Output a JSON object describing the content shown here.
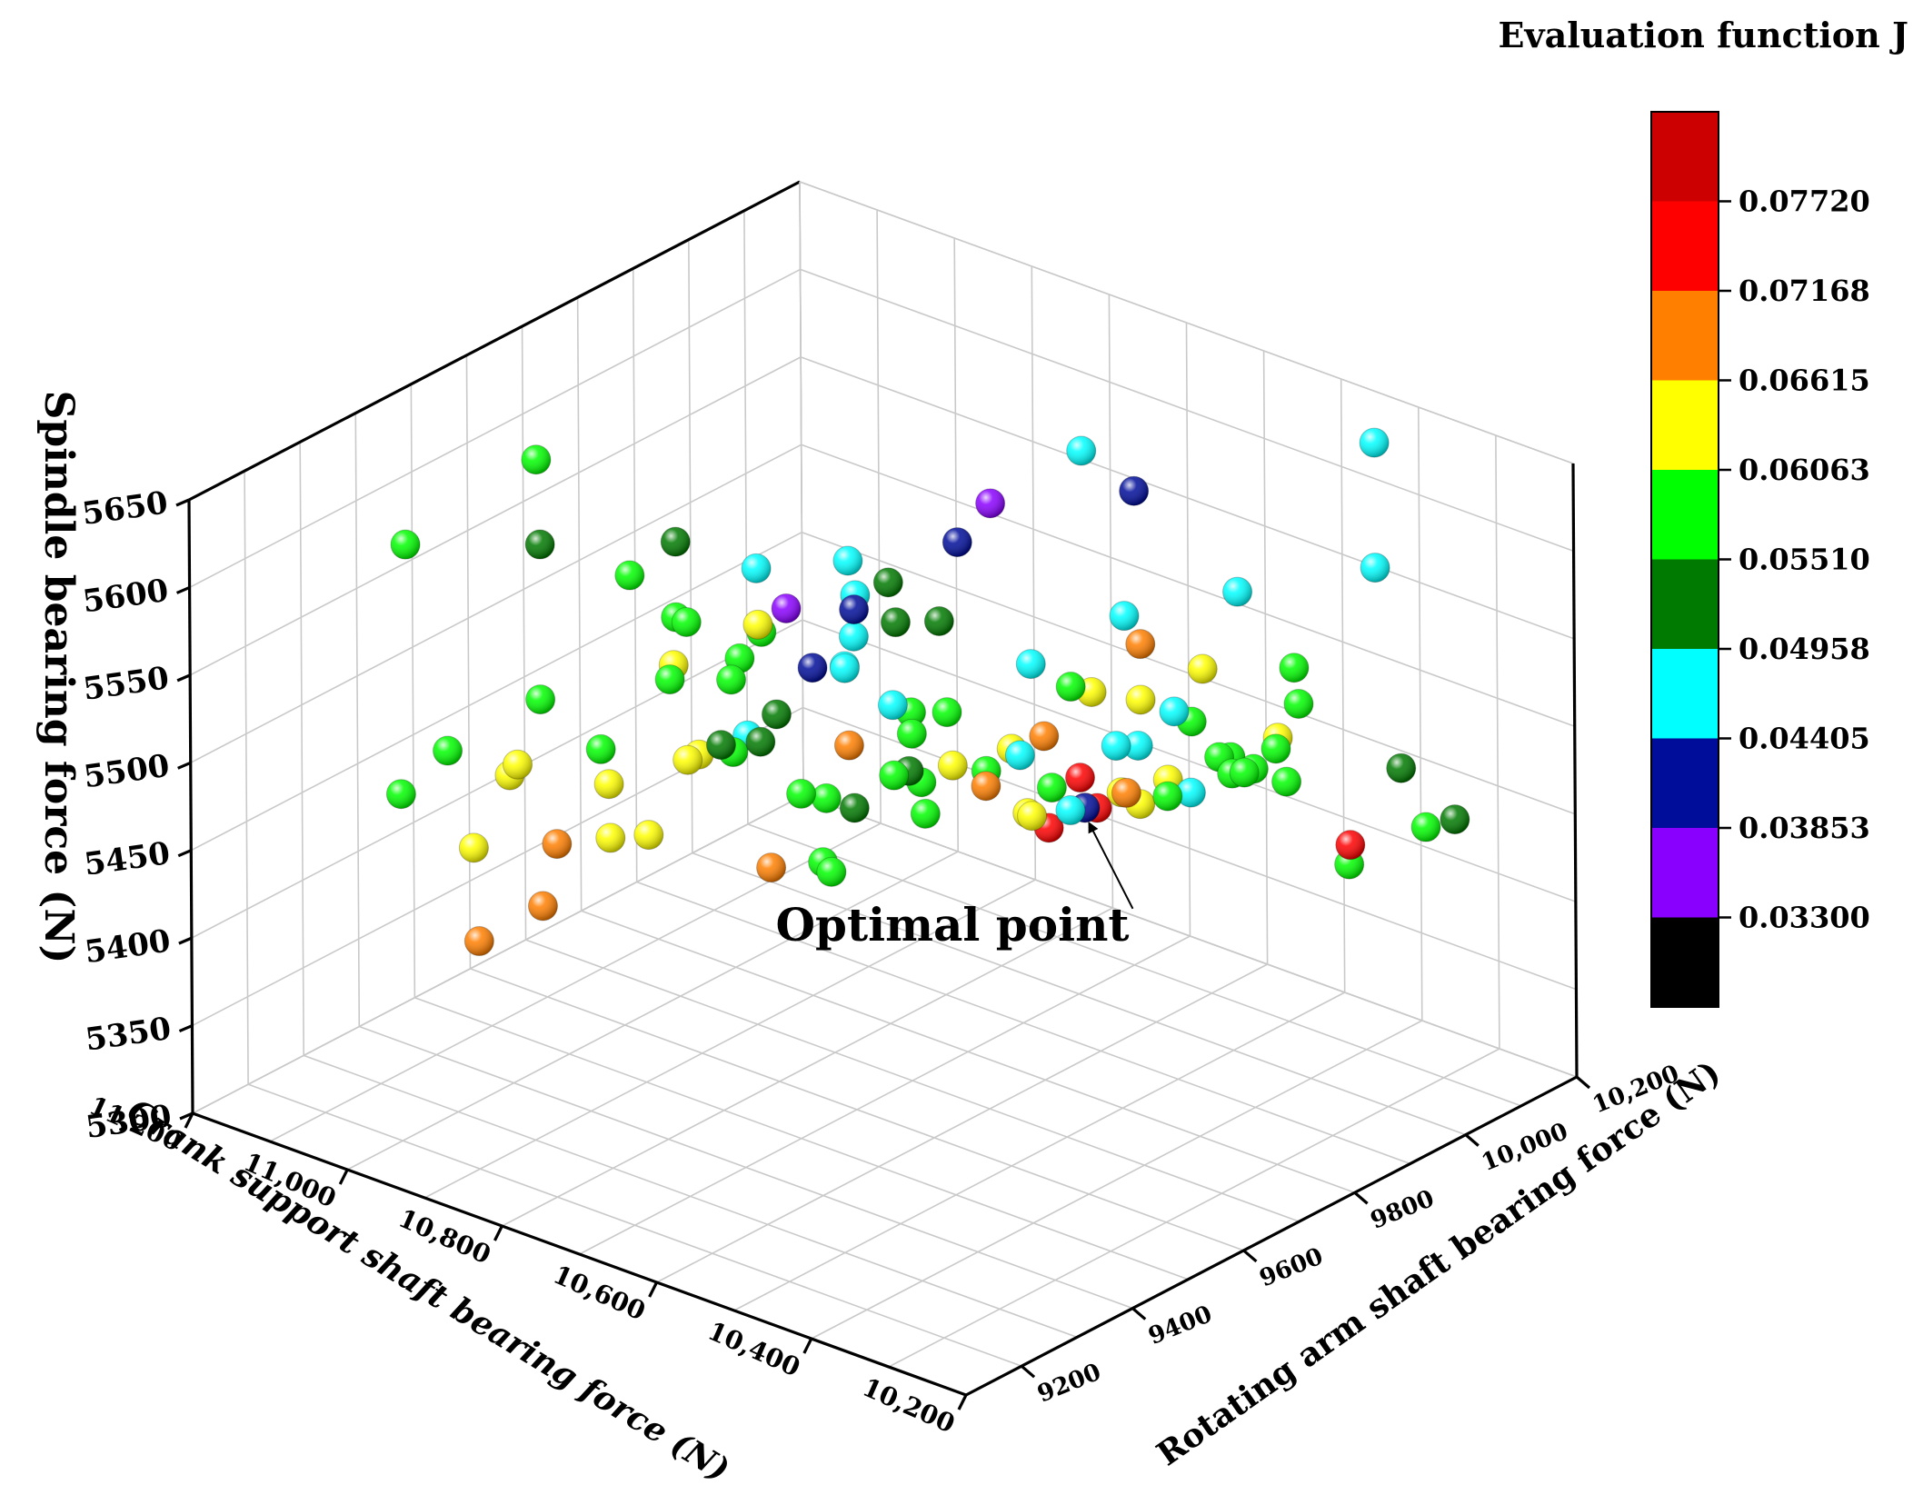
{
  "chart_data": {
    "type": "scatter",
    "annotation": "Optimal point",
    "colorbar": {
      "title": "Evaluation function J",
      "levels": [
        0.033,
        0.03853,
        0.04405,
        0.04958,
        0.0551,
        0.06063,
        0.06615,
        0.07168,
        0.0772
      ],
      "tick_labels": [
        "0.03300",
        "0.03853",
        "0.04405",
        "0.04958",
        "0.05510",
        "0.06063",
        "0.06615",
        "0.07168",
        "0.07720"
      ],
      "colors": [
        "#000000",
        "#8a00ff",
        "#000d9a",
        "#00ffff",
        "#007a00",
        "#00ff00",
        "#ffff00",
        "#ff7f00",
        "#ff0000",
        "#cc0000"
      ]
    },
    "axes": {
      "x": {
        "label": "Crank support shaft bearing force (N)",
        "range": [
          10200,
          11200
        ],
        "ticks": [
          11200,
          11000,
          10800,
          10600,
          10400,
          10200
        ],
        "tick_labels": [
          "11,200",
          "11,000",
          "10,800",
          "10,600",
          "10,400",
          "10,200"
        ]
      },
      "y": {
        "label": "Rotating arm shaft bearing force (N)",
        "range": [
          9100,
          10200
        ],
        "ticks": [
          9200,
          9400,
          9600,
          9800,
          10000,
          10200
        ],
        "tick_labels": [
          "9200",
          "9400",
          "9600",
          "9800",
          "10,000",
          "10,200"
        ]
      },
      "z": {
        "label": "Spindle bearing force (N)",
        "range": [
          5300,
          5650
        ],
        "ticks": [
          5300,
          5350,
          5400,
          5450,
          5500,
          5550,
          5600,
          5650
        ],
        "tick_labels": [
          "5300",
          "5350",
          "5400",
          "5450",
          "5500",
          "5550",
          "5600",
          "5650"
        ]
      }
    },
    "points": [
      {
        "x": 11060,
        "y": 9294,
        "z": 5615,
        "J": 0.0593
      },
      {
        "x": 11100,
        "y": 9585,
        "z": 5609,
        "J": 0.0585
      },
      {
        "x": 11022,
        "y": 9483,
        "z": 5590,
        "J": 0.0528
      },
      {
        "x": 10906,
        "y": 9483,
        "z": 5591,
        "J": 0.0576
      },
      {
        "x": 10933,
        "y": 9603,
        "z": 5586,
        "J": 0.0533
      },
      {
        "x": 10843,
        "y": 9623,
        "z": 5582,
        "J": 0.0472
      },
      {
        "x": 10816,
        "y": 9588,
        "z": 5560,
        "J": 0.063
      },
      {
        "x": 10787,
        "y": 9710,
        "z": 5581,
        "J": 0.0472
      },
      {
        "x": 10772,
        "y": 9578,
        "z": 5578,
        "J": 0.038
      },
      {
        "x": 10780,
        "y": 9713,
        "z": 5562,
        "J": 0.045
      },
      {
        "x": 10760,
        "y": 9683,
        "z": 5562,
        "J": 0.042
      },
      {
        "x": 10776,
        "y": 9767,
        "z": 5561,
        "J": 0.052
      },
      {
        "x": 10736,
        "y": 9836,
        "z": 5579,
        "J": 0.044
      },
      {
        "x": 10818,
        "y": 9597,
        "z": 5554,
        "J": 0.06
      },
      {
        "x": 10833,
        "y": 9563,
        "z": 5530,
        "J": 0.06
      },
      {
        "x": 10772,
        "y": 9699,
        "z": 5542,
        "J": 0.045
      },
      {
        "x": 10779,
        "y": 9784,
        "z": 5535,
        "J": 0.054
      },
      {
        "x": 10724,
        "y": 9879,
        "z": 5596,
        "J": 0.038
      },
      {
        "x": 10693,
        "y": 10000,
        "z": 5611,
        "J": 0.046
      },
      {
        "x": 10602,
        "y": 9968,
        "z": 5608,
        "J": 0.04
      },
      {
        "x": 10428,
        "y": 10159,
        "z": 5632,
        "J": 0.047
      },
      {
        "x": 10404,
        "y": 10126,
        "z": 5570,
        "J": 0.047
      },
      {
        "x": 10585,
        "y": 9829,
        "z": 5522,
        "J": 0.059
      },
      {
        "x": 10536,
        "y": 9842,
        "z": 5494,
        "J": 0.048
      },
      {
        "x": 10522,
        "y": 9862,
        "z": 5493,
        "J": 0.048
      },
      {
        "x": 10506,
        "y": 9905,
        "z": 5508,
        "J": 0.048
      },
      {
        "x": 10456,
        "y": 9939,
        "z": 5475,
        "J": 0.059
      },
      {
        "x": 10443,
        "y": 9943,
        "z": 5477,
        "J": 0.059
      },
      {
        "x": 10444,
        "y": 9961,
        "z": 5476,
        "J": 0.059
      },
      {
        "x": 10431,
        "y": 10002,
        "z": 5464,
        "J": 0.06
      },
      {
        "x": 10361,
        "y": 10111,
        "z": 5465,
        "J": 0.052
      },
      {
        "x": 10330,
        "y": 10164,
        "z": 5432,
        "J": 0.052
      },
      {
        "x": 10915,
        "y": 9578,
        "z": 5550,
        "J": 0.058
      },
      {
        "x": 10905,
        "y": 9583,
        "z": 5548,
        "J": 0.059
      },
      {
        "x": 10850,
        "y": 9602,
        "z": 5533,
        "J": 0.06
      },
      {
        "x": 10975,
        "y": 9417,
        "z": 5520,
        "J": 0.06
      },
      {
        "x": 10898,
        "y": 9543,
        "z": 5523,
        "J": 0.059
      },
      {
        "x": 10911,
        "y": 9568,
        "z": 5525,
        "J": 0.064
      },
      {
        "x": 10804,
        "y": 9669,
        "z": 5524,
        "J": 0.044
      },
      {
        "x": 10802,
        "y": 9724,
        "z": 5515,
        "J": 0.046
      },
      {
        "x": 10805,
        "y": 9728,
        "z": 5515,
        "J": 0.046
      },
      {
        "x": 10750,
        "y": 9822,
        "z": 5534,
        "J": 0.052
      },
      {
        "x": 10727,
        "y": 9740,
        "z": 5487,
        "J": 0.06
      },
      {
        "x": 10825,
        "y": 9633,
        "z": 5500,
        "J": 0.053
      },
      {
        "x": 10747,
        "y": 9664,
        "z": 5454,
        "J": 0.051
      },
      {
        "x": 10669,
        "y": 9874,
        "z": 5514,
        "J": 0.048
      },
      {
        "x": 10640,
        "y": 10002,
        "z": 5525,
        "J": 0.047
      },
      {
        "x": 10548,
        "y": 10078,
        "z": 5541,
        "J": 0.047
      },
      {
        "x": 10664,
        "y": 9890,
        "z": 5471,
        "J": 0.07
      },
      {
        "x": 10602,
        "y": 9978,
        "z": 5519,
        "J": 0.07
      },
      {
        "x": 10657,
        "y": 9837,
        "z": 5470,
        "J": 0.047
      },
      {
        "x": 10628,
        "y": 9926,
        "z": 5496,
        "J": 0.063
      },
      {
        "x": 10562,
        "y": 10034,
        "z": 5502,
        "J": 0.064
      },
      {
        "x": 10534,
        "y": 9973,
        "z": 5446,
        "J": 0.045
      },
      {
        "x": 10618,
        "y": 9796,
        "z": 5450,
        "J": 0.062
      },
      {
        "x": 10608,
        "y": 9790,
        "z": 5451,
        "J": 0.062
      },
      {
        "x": 10577,
        "y": 9842,
        "z": 5452,
        "J": 0.042
      },
      {
        "x": 10587,
        "y": 9830,
        "z": 5451,
        "J": 0.049
      },
      {
        "x": 10557,
        "y": 9889,
        "z": 5456,
        "J": 0.07
      },
      {
        "x": 10531,
        "y": 9927,
        "z": 5452,
        "J": 0.059
      },
      {
        "x": 11040,
        "y": 9340,
        "z": 5493,
        "J": 0.058
      },
      {
        "x": 10923,
        "y": 9453,
        "z": 5494,
        "J": 0.06
      },
      {
        "x": 11000,
        "y": 9410,
        "z": 5480,
        "J": 0.063
      },
      {
        "x": 10925,
        "y": 9470,
        "z": 5471,
        "J": 0.063
      },
      {
        "x": 10861,
        "y": 9583,
        "z": 5485,
        "J": 0.052
      },
      {
        "x": 10838,
        "y": 9622,
        "z": 5484,
        "J": 0.05
      },
      {
        "x": 10798,
        "y": 9639,
        "z": 5458,
        "J": 0.059
      },
      {
        "x": 10744,
        "y": 9731,
        "z": 5462,
        "J": 0.059
      },
      {
        "x": 10739,
        "y": 9751,
        "z": 5462,
        "J": 0.052
      },
      {
        "x": 10750,
        "y": 9738,
        "z": 5500,
        "J": 0.048
      },
      {
        "x": 10706,
        "y": 9784,
        "z": 5465,
        "J": 0.064
      },
      {
        "x": 10679,
        "y": 9806,
        "z": 5454,
        "J": 0.07
      },
      {
        "x": 10642,
        "y": 9873,
        "z": 5448,
        "J": 0.06
      },
      {
        "x": 10600,
        "y": 9940,
        "z": 5441,
        "J": 0.064
      },
      {
        "x": 10578,
        "y": 9993,
        "z": 5443,
        "J": 0.063
      },
      {
        "x": 10549,
        "y": 10045,
        "z": 5452,
        "J": 0.059
      },
      {
        "x": 10543,
        "y": 10057,
        "z": 5451,
        "J": 0.059
      },
      {
        "x": 10518,
        "y": 10104,
        "z": 5452,
        "J": 0.059
      },
      {
        "x": 11084,
        "y": 9317,
        "z": 5465,
        "J": 0.06
      },
      {
        "x": 11021,
        "y": 9425,
        "z": 5468,
        "J": 0.063
      },
      {
        "x": 10908,
        "y": 9588,
        "z": 5468,
        "J": 0.063
      },
      {
        "x": 10888,
        "y": 9668,
        "z": 5472,
        "J": 0.045
      },
      {
        "x": 10910,
        "y": 9611,
        "z": 5467,
        "J": 0.063
      },
      {
        "x": 10890,
        "y": 9645,
        "z": 5466,
        "J": 0.06
      },
      {
        "x": 10782,
        "y": 9815,
        "z": 5478,
        "J": 0.059
      },
      {
        "x": 10760,
        "y": 9849,
        "z": 5476,
        "J": 0.058
      },
      {
        "x": 10809,
        "y": 9741,
        "z": 5467,
        "J": 0.07
      },
      {
        "x": 10741,
        "y": 9783,
        "z": 5432,
        "J": 0.06
      },
      {
        "x": 10701,
        "y": 9883,
        "z": 5459,
        "J": 0.062
      },
      {
        "x": 10636,
        "y": 10025,
        "z": 5474,
        "J": 0.062
      },
      {
        "x": 10530,
        "y": 10154,
        "z": 5488,
        "J": 0.059
      },
      {
        "x": 10520,
        "y": 10148,
        "z": 5470,
        "J": 0.059
      },
      {
        "x": 10457,
        "y": 10152,
        "z": 5399,
        "J": 0.078
      },
      {
        "x": 10387,
        "y": 10191,
        "z": 5414,
        "J": 0.059
      },
      {
        "x": 11040,
        "y": 9386,
        "z": 5430,
        "J": 0.063
      },
      {
        "x": 10948,
        "y": 9504,
        "z": 5431,
        "J": 0.063
      },
      {
        "x": 11003,
        "y": 9484,
        "z": 5422,
        "J": 0.069
      },
      {
        "x": 10949,
        "y": 9574,
        "z": 5421,
        "J": 0.062
      },
      {
        "x": 10839,
        "y": 9741,
        "z": 5432,
        "J": 0.059
      },
      {
        "x": 10785,
        "y": 9837,
        "z": 5434,
        "J": 0.059
      },
      {
        "x": 10742,
        "y": 9894,
        "z": 5438,
        "J": 0.059
      },
      {
        "x": 10689,
        "y": 9989,
        "z": 5427,
        "J": 0.078
      },
      {
        "x": 10632,
        "y": 10111,
        "z": 5448,
        "J": 0.058
      },
      {
        "x": 10584,
        "y": 10199,
        "z": 5432,
        "J": 0.062
      },
      {
        "x": 11018,
        "y": 9479,
        "z": 5385,
        "J": 0.07
      },
      {
        "x": 11046,
        "y": 9403,
        "z": 5373,
        "J": 0.069
      },
      {
        "x": 10880,
        "y": 9698,
        "z": 5393,
        "J": 0.069
      },
      {
        "x": 10851,
        "y": 9751,
        "z": 5392,
        "J": 0.06
      },
      {
        "x": 10838,
        "y": 9748,
        "z": 5389,
        "J": 0.06
      },
      {
        "x": 10719,
        "y": 9974,
        "z": 5396,
        "J": 0.078
      },
      {
        "x": 10685,
        "y": 9992,
        "z": 5410,
        "J": 0.078
      },
      {
        "x": 10678,
        "y": 10004,
        "z": 5409,
        "J": 0.079
      },
      {
        "x": 10656,
        "y": 10051,
        "z": 5407,
        "J": 0.063
      },
      {
        "x": 10491,
        "y": 10197,
        "z": 5375,
        "J": 0.059
      }
    ],
    "optimal_point": {
      "x": 10690,
      "y": 9990,
      "z": 5410
    }
  }
}
